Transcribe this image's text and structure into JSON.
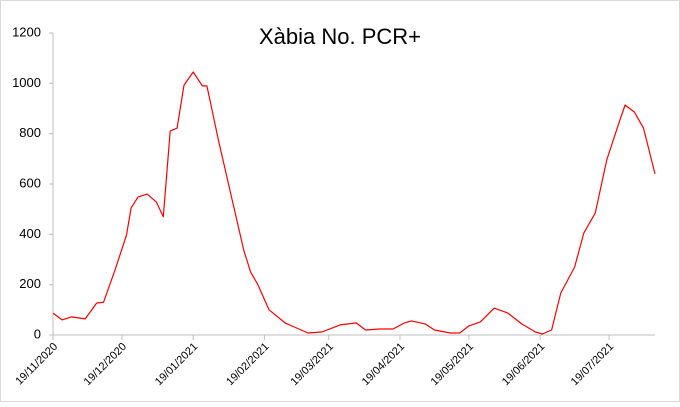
{
  "chart_data": {
    "type": "line",
    "title": "Xàbia No. PCR+",
    "x": [
      "19/11/2020",
      "23/11/2020",
      "27/11/2020",
      "03/12/2020",
      "08/12/2020",
      "11/12/2020",
      "16/12/2020",
      "21/12/2020",
      "23/12/2020",
      "26/12/2020",
      "30/12/2020",
      "03/01/2021",
      "06/01/2021",
      "09/01/2021",
      "12/01/2021",
      "15/01/2021",
      "19/01/2021",
      "23/01/2021",
      "25/01/2021",
      "30/01/2021",
      "05/02/2021",
      "10/02/2021",
      "13/02/2021",
      "16/02/2021",
      "21/02/2021",
      "28/02/2021",
      "05/03/2021",
      "10/03/2021",
      "16/03/2021",
      "24/03/2021",
      "31/03/2021",
      "04/04/2021",
      "10/04/2021",
      "16/04/2021",
      "21/04/2021",
      "24/04/2021",
      "30/04/2021",
      "04/05/2021",
      "11/05/2021",
      "15/05/2021",
      "19/05/2021",
      "24/05/2021",
      "30/05/2021",
      "05/06/2021",
      "11/06/2021",
      "17/06/2021",
      "20/06/2021",
      "24/06/2021",
      "28/06/2021",
      "04/07/2021",
      "08/07/2021",
      "13/07/2021",
      "18/07/2021",
      "23/07/2021",
      "26/07/2021",
      "30/07/2021",
      "03/08/2021",
      "08/08/2021"
    ],
    "series": [
      {
        "name": "No. PCR+",
        "color": "#ff0000",
        "values": [
          87,
          60,
          72,
          64,
          127,
          130,
          258,
          397,
          505,
          548,
          560,
          528,
          470,
          810,
          822,
          993,
          1045,
          990,
          990,
          775,
          536,
          338,
          250,
          203,
          100,
          48,
          28,
          8,
          12,
          40,
          48,
          20,
          24,
          24,
          48,
          56,
          44,
          20,
          8,
          8,
          36,
          52,
          107,
          87,
          44,
          12,
          4,
          20,
          167,
          270,
          405,
          485,
          695,
          834,
          914,
          886,
          822,
          640
        ]
      }
    ],
    "xlim": [
      "19/11/2020",
      "08/08/2021"
    ],
    "xticks": [
      "19/11/2020",
      "19/12/2020",
      "19/01/2021",
      "19/02/2021",
      "19/03/2021",
      "19/04/2021",
      "19/05/2021",
      "19/06/2021",
      "19/07/2021"
    ],
    "ylim": [
      0,
      1200
    ],
    "yticks": [
      0,
      200,
      400,
      600,
      800,
      1000,
      1200
    ]
  }
}
